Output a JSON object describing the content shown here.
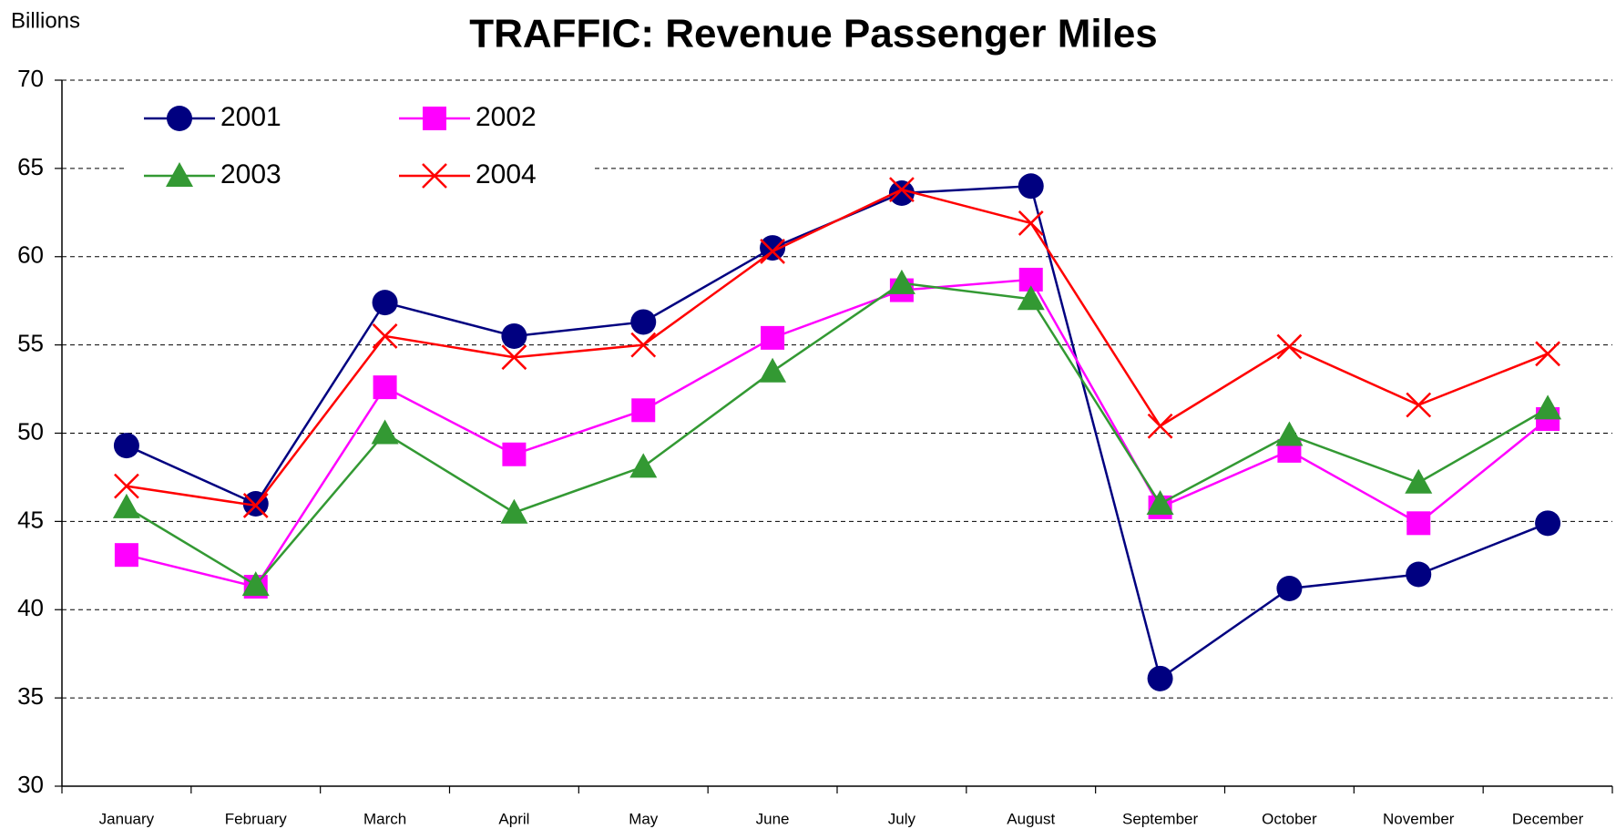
{
  "chart_data": {
    "type": "line",
    "title": "TRAFFIC: Revenue Passenger Miles",
    "y_label": "Billions",
    "categories": [
      "January",
      "February",
      "March",
      "April",
      "May",
      "June",
      "July",
      "August",
      "September",
      "October",
      "November",
      "December"
    ],
    "series": [
      {
        "name": "2001",
        "color": "#000080",
        "marker": "circle",
        "values": [
          49.3,
          46.0,
          57.4,
          55.5,
          56.3,
          60.5,
          63.6,
          64.0,
          36.1,
          41.2,
          42.0,
          44.9
        ]
      },
      {
        "name": "2002",
        "color": "#ff00ff",
        "marker": "square",
        "values": [
          43.1,
          41.3,
          52.6,
          48.8,
          51.3,
          55.4,
          58.1,
          58.7,
          45.8,
          49.0,
          44.9,
          50.8
        ]
      },
      {
        "name": "2003",
        "color": "#339933",
        "marker": "triangle",
        "values": [
          45.8,
          41.4,
          50.0,
          45.5,
          48.1,
          53.5,
          58.5,
          57.6,
          46.0,
          49.9,
          47.2,
          51.4
        ]
      },
      {
        "name": "2004",
        "color": "#ff0000",
        "marker": "x",
        "values": [
          47.0,
          45.9,
          55.5,
          54.3,
          55.0,
          60.3,
          63.8,
          61.9,
          50.4,
          54.9,
          51.6,
          54.5
        ]
      }
    ],
    "ylim": [
      30,
      70
    ],
    "yticks": [
      30,
      35,
      40,
      45,
      50,
      55,
      60,
      65,
      70
    ],
    "grid": true,
    "legend": "top-left"
  }
}
